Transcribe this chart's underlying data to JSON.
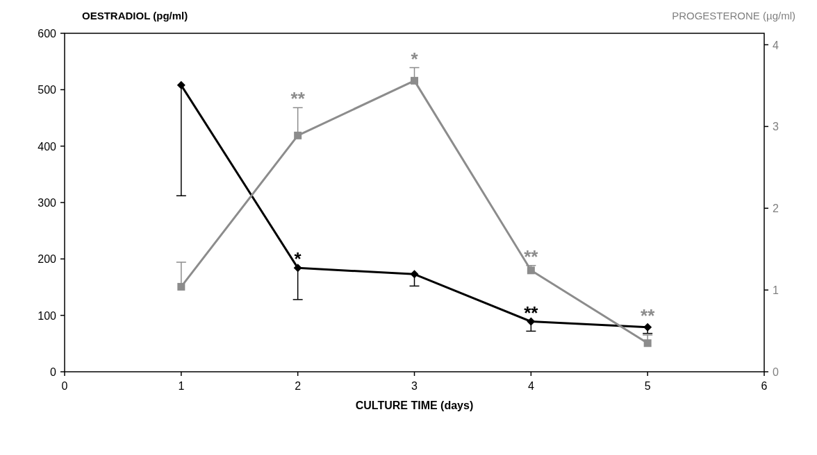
{
  "chart_data": {
    "type": "line",
    "xlabel": "CULTURE TIME (days)",
    "ylabel": "OESTRADIOL (pg/ml)",
    "y2label": "PROGESTERONE (µg/ml)",
    "x": [
      1,
      2,
      3,
      4,
      5
    ],
    "series": [
      {
        "color": "#000000",
        "marker": "diamond",
        "values": [
          508,
          184,
          173,
          89,
          79
        ],
        "errors": [
          [
            312,
            508
          ],
          [
            128,
            184
          ],
          [
            152,
            173
          ],
          [
            72,
            89
          ],
          [
            68,
            79
          ]
        ]
      },
      {
        "color": "#8c8c8c",
        "marker": "square",
        "axis": "y2",
        "values": [
          1.04,
          2.89,
          3.56,
          1.24,
          0.35
        ],
        "errors": [
          [
            1.04,
            1.34
          ],
          [
            2.89,
            3.23
          ],
          [
            3.56,
            3.72
          ],
          [
            1.24,
            1.3
          ],
          [
            0.35,
            0.45
          ]
        ]
      }
    ],
    "xlim": [
      0,
      6
    ],
    "xticks": [
      0,
      1,
      2,
      3,
      4,
      5,
      6
    ],
    "ylim": [
      0,
      600
    ],
    "yticks": [
      0,
      100,
      200,
      300,
      400,
      500,
      600
    ],
    "y2lim": [
      0,
      4.14
    ],
    "y2ticks": [
      0,
      1,
      2,
      3,
      4
    ],
    "annotations": [
      {
        "text": "*",
        "x": 2,
        "y": 184
      },
      {
        "text": "**",
        "x": 2,
        "y": 419
      },
      {
        "text": "*",
        "x": 3,
        "y": 516
      },
      {
        "text": "**",
        "x": 4,
        "y": 180
      },
      {
        "text": "**",
        "x": 4,
        "y": 89
      },
      {
        "text": "**",
        "x": 5,
        "y": 51
      }
    ],
    "grid": false,
    "line_style": "solid"
  }
}
